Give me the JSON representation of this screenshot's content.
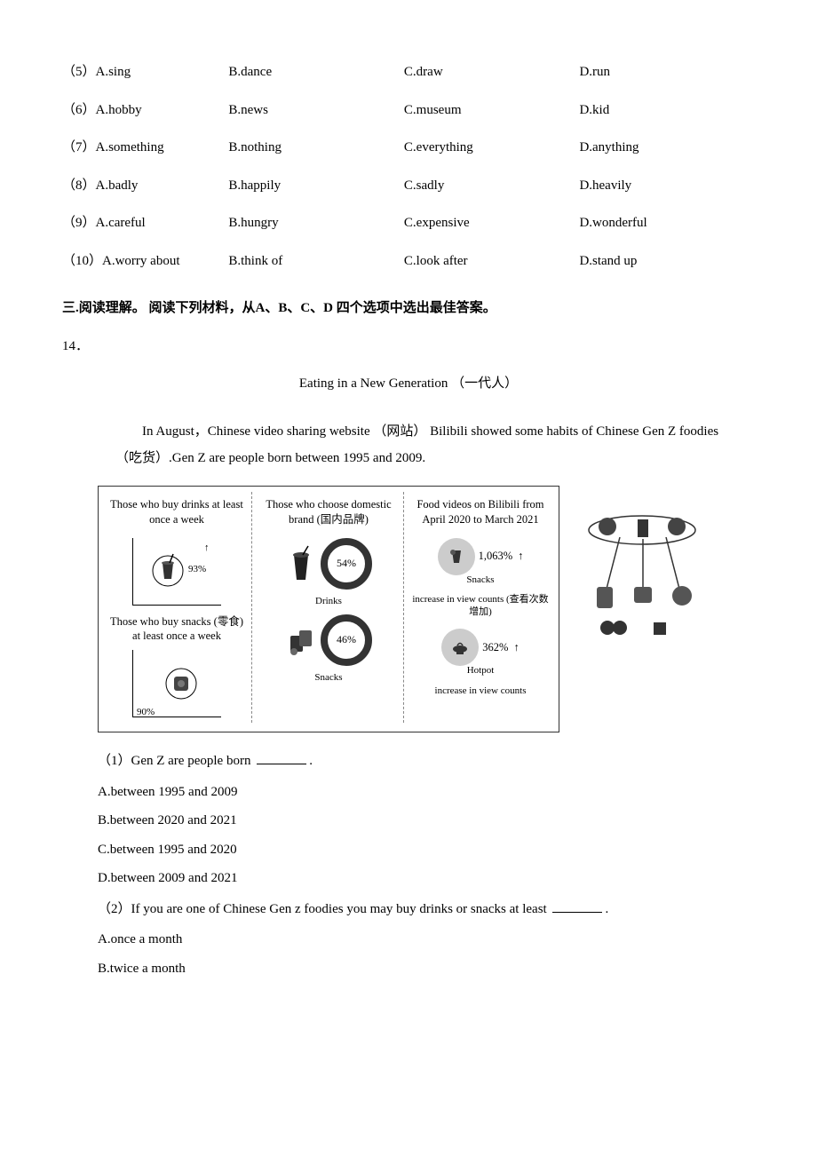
{
  "options_table": {
    "rows": [
      {
        "num": "（5）",
        "a": "A.sing",
        "b": "B.dance",
        "c": "C.draw",
        "d": "D.run"
      },
      {
        "num": "（6）",
        "a": "A.hobby",
        "b": "B.news",
        "c": "C.museum",
        "d": "D.kid"
      },
      {
        "num": "（7）",
        "a": "A.something",
        "b": "B.nothing",
        "c": "C.everything",
        "d": "D.anything"
      },
      {
        "num": "（8）",
        "a": "A.badly",
        "b": "B.happily",
        "c": "C.sadly",
        "d": "D.heavily"
      },
      {
        "num": "（9）",
        "a": "A.careful",
        "b": "B.hungry",
        "c": "C.expensive",
        "d": "D.wonderful"
      },
      {
        "num": "（10）",
        "a": "A.worry about",
        "b": "B.think of",
        "c": "C.look after",
        "d": "D.stand up"
      }
    ]
  },
  "section3_heading": "三.阅读理解。 阅读下列材料，从A、B、C、D 四个选项中选出最佳答案。",
  "q14_num": "14．",
  "reading_title": "Eating in a New Generation （一代人）",
  "intro_para": "In August，Chinese video sharing website （网站） Bilibili showed some habits of Chinese Gen Z foodies （吃货）.Gen Z are people born between 1995 and 2009.",
  "panel1": {
    "title1": "Those who buy drinks at least once a week",
    "pct1": "93%",
    "title2": "Those who buy snacks (零食) at least once a week",
    "pct2": "90%"
  },
  "panel2": {
    "title": "Those who choose domestic brand (国内品牌)",
    "drinks_pct": "54%",
    "drinks_label": "Drinks",
    "snacks_pct": "46%",
    "snacks_label": "Snacks"
  },
  "panel3": {
    "title": "Food videos on Bilibili from April 2020 to March 2021",
    "snacks_label": "Snacks",
    "snacks_val": "1,063%",
    "inc_label1": "increase in view counts (查看次数增加)",
    "hotpot_label": "Hotpot",
    "hotpot_val": "362%",
    "inc_label2": "increase in view counts"
  },
  "sub_q1": {
    "stem_before": "（1）Gen Z are people born ",
    "stem_after": ".",
    "opt_a": "A.between 1995 and 2009",
    "opt_b": "B.between 2020 and 2021",
    "opt_c": "C.between 1995 and 2020",
    "opt_d": "D.between 2009 and 2021"
  },
  "sub_q2": {
    "stem_before": "（2）If you are one of Chinese Gen z foodies you may buy drinks or snacks at least ",
    "stem_after": ".",
    "opt_a": "A.once a month",
    "opt_b": "B.twice a month"
  },
  "colors": {
    "text": "#000000",
    "bg": "#ffffff",
    "figure_border": "#333333",
    "dashed": "#888888",
    "chip_bg": "#cccccc"
  }
}
